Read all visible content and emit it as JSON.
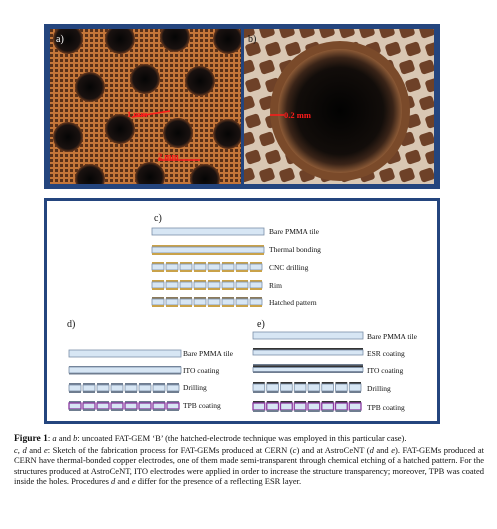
{
  "photos": {
    "a": {
      "letter": "a)",
      "scale_labels": [
        "1 mm",
        "2 mm"
      ]
    },
    "b": {
      "letter": "b)",
      "scale_label": "0.2 mm"
    }
  },
  "sketch": {
    "c": {
      "letter": "c)",
      "labels": [
        "Bare PMMA tile",
        "Thermal bonding",
        "CNC drilling",
        "Rim",
        "Hatched pattern"
      ]
    },
    "d": {
      "letter": "d)",
      "labels": [
        "Bare PMMA tile",
        "ITO coating",
        "Drilling",
        "TPB coating"
      ]
    },
    "e": {
      "letter": "e)",
      "labels": [
        "Bare PMMA tile",
        "ESR coating",
        "ITO coating",
        "Drilling",
        "TPB coating"
      ]
    }
  },
  "caption": {
    "figure_label": "Figure 1",
    "part1": ": ",
    "ab": "a",
    "and1": " and ",
    "b": "b",
    "text1": ": uncoated FAT-GEM ‘B’ (the hatched-electrode technique was employed in this particular case).",
    "c": "c",
    "sep1": ", ",
    "d": "d",
    "and2": " and ",
    "e": "e",
    "text2": ": Sketch of the fabrication process for FAT-GEMs produced at CERN (",
    "c2": "c",
    "text3": ") and at AstroCeNT (",
    "d2": "d",
    "and3": " and ",
    "e2": "e",
    "text4": "). FAT-GEMs produced at CERN have thermal-bonded copper electrodes, one of them made semi-transparent through chemical etching of a hatched pattern. For the structures produced at AstroCeNT, ITO electrodes were applied in order to increase the structure transparency; moreover, TPB was coated inside the holes. Procedures ",
    "d3": "d",
    "and4": " and ",
    "e3": "e",
    "text5": " differ for the presence of a reflecting ESR layer."
  }
}
